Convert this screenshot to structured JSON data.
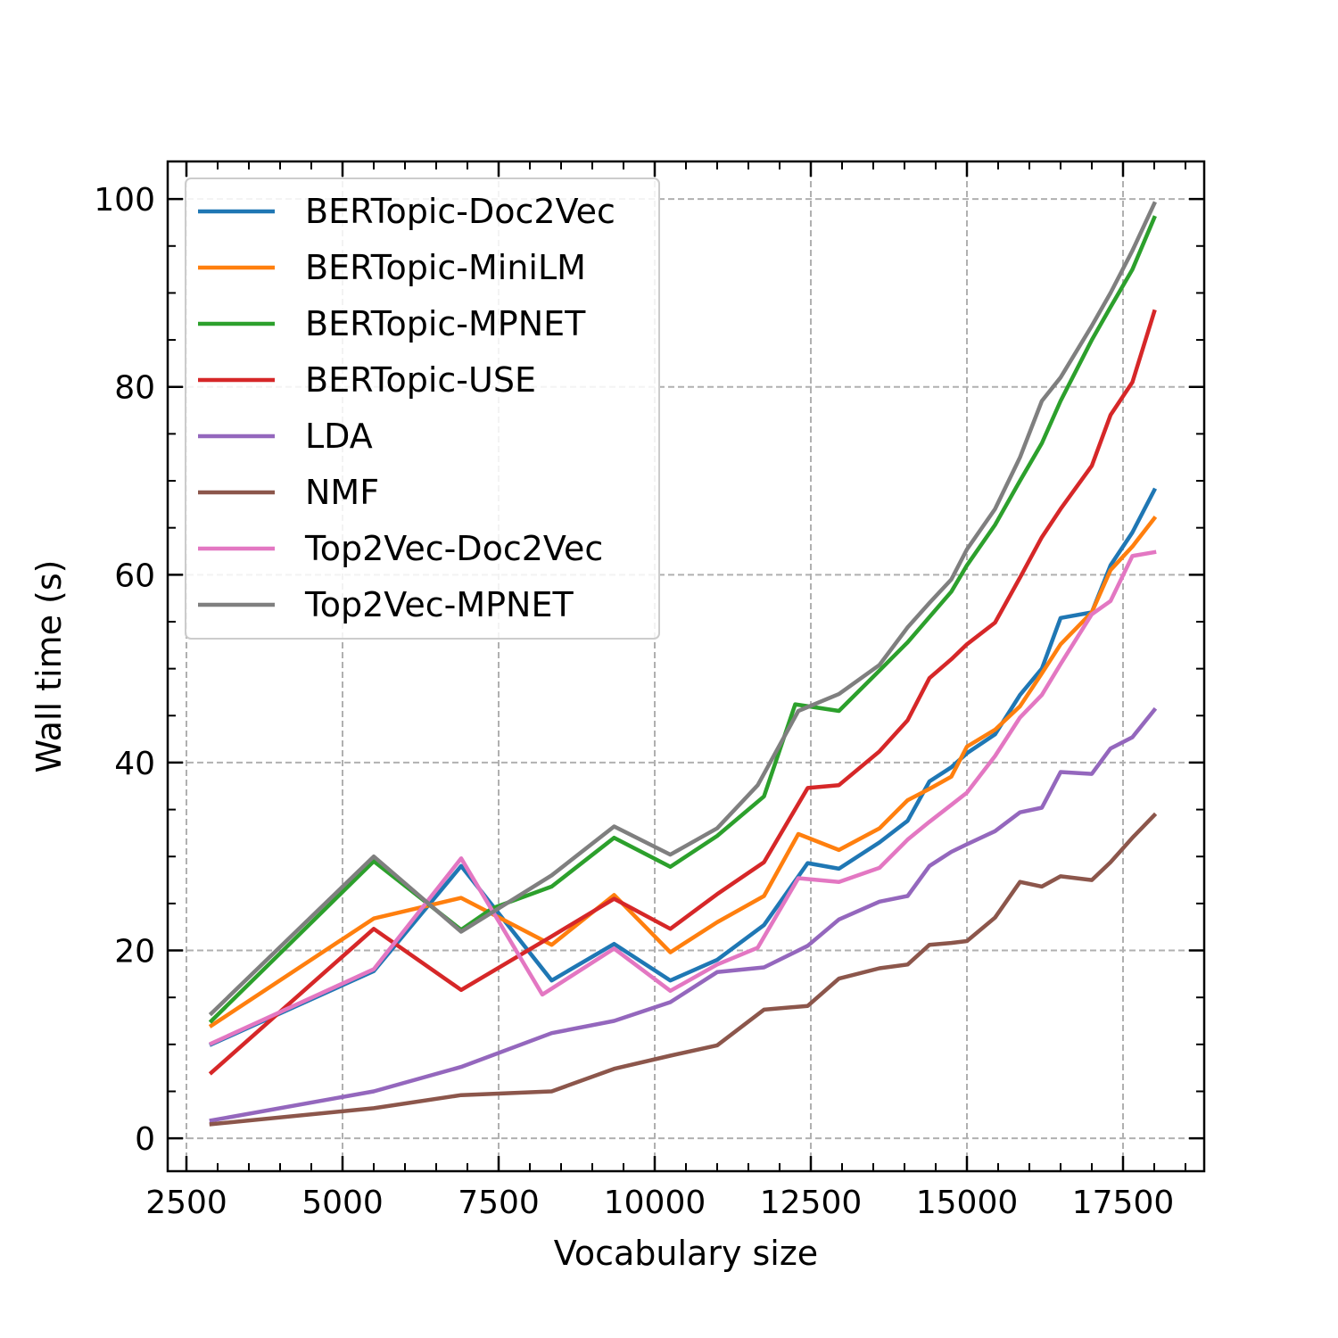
{
  "chart_data": {
    "type": "line",
    "xlabel": "Vocabulary size",
    "ylabel": "Wall time (s)",
    "xlim": [
      2200,
      18800
    ],
    "ylim": [
      -3.5,
      104
    ],
    "xticks": [
      2500,
      5000,
      7500,
      10000,
      12500,
      15000,
      17500
    ],
    "xtick_labels": [
      "2500",
      "5000",
      "7500",
      "10000",
      "12500",
      "15000",
      "17500"
    ],
    "yticks": [
      0,
      20,
      40,
      60,
      80,
      100
    ],
    "ytick_labels": [
      "0",
      "20",
      "40",
      "60",
      "80",
      "100"
    ],
    "grid": true,
    "legend_position": "upper-left",
    "series": [
      {
        "name": "BERTopic-Doc2Vec",
        "color": "#1f77b4",
        "x": [
          2900,
          5500,
          6900,
          8350,
          9350,
          10250,
          11000,
          11750,
          12450,
          12950,
          13600,
          14050,
          14400,
          14750,
          15000,
          15450,
          15850,
          16200,
          16500,
          17000,
          17300,
          17650,
          18000
        ],
        "y": [
          10,
          17.8,
          29,
          16.8,
          20.7,
          16.8,
          19,
          22.7,
          29.3,
          28.7,
          31.5,
          33.8,
          38,
          39.5,
          41,
          43,
          47.2,
          50,
          55.4,
          56,
          61,
          64.5,
          69
        ]
      },
      {
        "name": "BERTopic-MiniLM",
        "color": "#ff7f0e",
        "x": [
          2900,
          5500,
          6900,
          8350,
          9350,
          10250,
          11000,
          11750,
          12300,
          12950,
          13600,
          14050,
          14400,
          14750,
          15000,
          15450,
          15850,
          16200,
          16500,
          17000,
          17300,
          17650,
          18000
        ],
        "y": [
          12,
          23.4,
          25.6,
          20.6,
          25.9,
          19.8,
          23,
          25.8,
          32.4,
          30.7,
          33,
          36,
          37.2,
          38.5,
          41.7,
          43.5,
          46,
          49.5,
          52.6,
          56,
          60.5,
          63,
          66
        ]
      },
      {
        "name": "BERTopic-MPNET",
        "color": "#2ca02c",
        "x": [
          2900,
          5500,
          6900,
          7400,
          8350,
          9350,
          10250,
          11000,
          11750,
          12250,
          12950,
          13600,
          14050,
          14400,
          14750,
          15000,
          15450,
          15850,
          16200,
          16500,
          17000,
          17300,
          17650,
          18000
        ],
        "y": [
          12.5,
          29.5,
          22.2,
          24.5,
          26.8,
          32,
          28.9,
          32.2,
          36.4,
          46.2,
          45.5,
          49.8,
          52.8,
          55.5,
          58.2,
          61,
          65.3,
          70,
          74,
          78.5,
          85,
          88.5,
          92.5,
          98
        ]
      },
      {
        "name": "BERTopic-USE",
        "color": "#d62728",
        "x": [
          2900,
          5500,
          6900,
          8350,
          9350,
          10250,
          11000,
          11750,
          12450,
          12950,
          13600,
          14050,
          14400,
          14750,
          15000,
          15450,
          15850,
          16200,
          16500,
          17000,
          17300,
          17650,
          18000
        ],
        "y": [
          7,
          22.3,
          15.8,
          21.5,
          25.5,
          22.3,
          26,
          29.4,
          37.3,
          37.6,
          41.2,
          44.5,
          49,
          51,
          52.6,
          54.9,
          59.7,
          64,
          67,
          71.6,
          77,
          80.5,
          88
        ]
      },
      {
        "name": "LDA",
        "color": "#9467bd",
        "x": [
          2900,
          5500,
          6900,
          8350,
          9350,
          10250,
          11000,
          11750,
          12450,
          12950,
          13600,
          14050,
          14400,
          14750,
          15000,
          15450,
          15850,
          16200,
          16500,
          17000,
          17300,
          17650,
          18000
        ],
        "y": [
          1.9,
          5,
          7.6,
          11.2,
          12.5,
          14.5,
          17.7,
          18.2,
          20.5,
          23.3,
          25.2,
          25.8,
          29,
          30.5,
          31.3,
          32.7,
          34.7,
          35.2,
          39,
          38.8,
          41.5,
          42.7,
          45.6
        ]
      },
      {
        "name": "NMF",
        "color": "#8c564b",
        "x": [
          2900,
          5500,
          6900,
          8350,
          9350,
          10250,
          11000,
          11750,
          12450,
          12950,
          13600,
          14050,
          14400,
          14750,
          15000,
          15450,
          15850,
          16200,
          16500,
          17000,
          17300,
          17650,
          18000
        ],
        "y": [
          1.5,
          3.2,
          4.6,
          5,
          7.4,
          8.8,
          9.9,
          13.7,
          14.1,
          17,
          18.1,
          18.5,
          20.6,
          20.8,
          21,
          23.5,
          27.3,
          26.8,
          27.9,
          27.5,
          29.4,
          32,
          34.4
        ]
      },
      {
        "name": "Top2Vec-Doc2Vec",
        "color": "#e377c2",
        "x": [
          2900,
          5500,
          6900,
          8200,
          9350,
          10250,
          11000,
          11650,
          12300,
          12950,
          13600,
          14050,
          14400,
          14750,
          15000,
          15450,
          15850,
          16200,
          16500,
          17000,
          17300,
          17650,
          18000
        ],
        "y": [
          10.1,
          18,
          29.8,
          15.3,
          20.2,
          15.7,
          18.5,
          20.3,
          27.7,
          27.3,
          28.8,
          31.8,
          33.7,
          35.5,
          36.8,
          40.7,
          44.8,
          47.2,
          50.5,
          55.8,
          57.2,
          62,
          62.4
        ]
      },
      {
        "name": "Top2Vec-MPNET",
        "color": "#7f7f7f",
        "x": [
          2900,
          5500,
          6900,
          8350,
          9350,
          10250,
          11000,
          11650,
          12300,
          12950,
          13600,
          14050,
          14400,
          14750,
          15000,
          15450,
          15850,
          16200,
          16500,
          17000,
          17300,
          17650,
          18000
        ],
        "y": [
          13.3,
          30,
          22,
          28,
          33.2,
          30.2,
          33,
          37.6,
          45.5,
          47.3,
          50.4,
          54.4,
          57,
          59.5,
          62.7,
          67,
          72.5,
          78.5,
          81,
          86.5,
          90,
          94.5,
          99.5
        ]
      }
    ]
  }
}
